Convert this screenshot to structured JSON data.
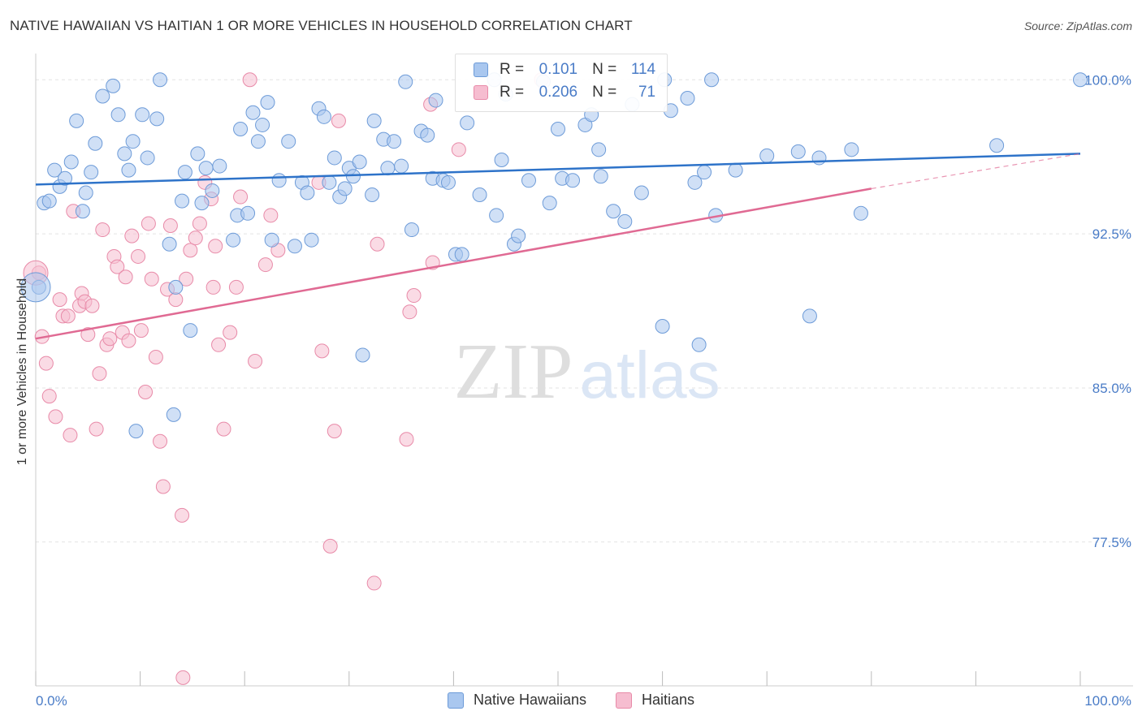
{
  "title": "NATIVE HAWAIIAN VS HAITIAN 1 OR MORE VEHICLES IN HOUSEHOLD CORRELATION CHART",
  "source": "Source: ZipAtlas.com",
  "watermark": {
    "zip": "ZIP",
    "atlas": "atlas"
  },
  "colors": {
    "blue_fill": "#a9c7ef",
    "blue_stroke": "#6d9bd8",
    "blue_line": "#2e73c9",
    "pink_fill": "#f6bdd0",
    "pink_stroke": "#e88aa8",
    "pink_line": "#e06a93",
    "tick_label": "#4a7cc7",
    "grid": "#e3e3e3"
  },
  "legend_top": {
    "rows": [
      {
        "r_label": "R =",
        "r_value": "0.101",
        "n_label": "N =",
        "n_value": "114"
      },
      {
        "r_label": "R =",
        "r_value": "0.206",
        "n_label": "N =",
        "n_value": "71"
      }
    ]
  },
  "legend_bottom": [
    "Native Hawaiians",
    "Haitians"
  ],
  "chart_data": {
    "type": "scatter",
    "title": "NATIVE HAWAIIAN VS HAITIAN 1 OR MORE VEHICLES IN HOUSEHOLD CORRELATION CHART",
    "xlabel": "",
    "ylabel": "1 or more Vehicles in Household",
    "xlim": [
      0,
      100
    ],
    "ylim": [
      70.5,
      100.8
    ],
    "x_tick_labels": [
      "0.0%",
      "100.0%"
    ],
    "y_ticks": [
      77.5,
      85.0,
      92.5,
      100.0
    ],
    "y_tick_labels": [
      "77.5%",
      "85.0%",
      "92.5%",
      "100.0%"
    ],
    "grid": true,
    "legend_position": "bottom",
    "series": [
      {
        "name": "Native Hawaiians",
        "r": 0.101,
        "n": 114,
        "trend": {
          "x0": 0,
          "y0": 94.9,
          "x1": 100,
          "y1": 96.4
        },
        "points": [
          [
            0.8,
            94.0
          ],
          [
            1.3,
            94.1
          ],
          [
            1.8,
            95.6
          ],
          [
            2.3,
            94.8
          ],
          [
            2.8,
            95.2
          ],
          [
            3.4,
            96.0
          ],
          [
            3.9,
            98.0
          ],
          [
            4.5,
            93.6
          ],
          [
            4.8,
            94.5
          ],
          [
            5.3,
            95.5
          ],
          [
            5.7,
            96.9
          ],
          [
            6.4,
            99.2
          ],
          [
            7.4,
            99.7
          ],
          [
            7.9,
            98.3
          ],
          [
            8.5,
            96.4
          ],
          [
            8.9,
            95.6
          ],
          [
            9.3,
            97.0
          ],
          [
            10.2,
            98.3
          ],
          [
            10.7,
            96.2
          ],
          [
            11.6,
            98.1
          ],
          [
            11.9,
            100.0
          ],
          [
            12.8,
            92.0
          ],
          [
            13.4,
            89.9
          ],
          [
            14.0,
            94.1
          ],
          [
            14.3,
            95.5
          ],
          [
            14.8,
            87.8
          ],
          [
            15.5,
            96.4
          ],
          [
            15.9,
            94.0
          ],
          [
            16.3,
            95.7
          ],
          [
            16.9,
            94.6
          ],
          [
            17.6,
            95.8
          ],
          [
            18.9,
            92.2
          ],
          [
            19.3,
            93.4
          ],
          [
            19.6,
            97.6
          ],
          [
            20.3,
            93.5
          ],
          [
            20.8,
            98.4
          ],
          [
            21.3,
            97.0
          ],
          [
            21.7,
            97.8
          ],
          [
            22.2,
            98.9
          ],
          [
            22.6,
            92.2
          ],
          [
            23.3,
            95.1
          ],
          [
            24.2,
            97.0
          ],
          [
            24.8,
            91.9
          ],
          [
            25.5,
            95.0
          ],
          [
            26.0,
            94.5
          ],
          [
            26.4,
            92.2
          ],
          [
            27.1,
            98.6
          ],
          [
            27.6,
            98.2
          ],
          [
            28.1,
            95.0
          ],
          [
            28.6,
            96.2
          ],
          [
            29.1,
            94.3
          ],
          [
            29.6,
            94.7
          ],
          [
            30.0,
            95.7
          ],
          [
            30.4,
            95.3
          ],
          [
            31.0,
            96.0
          ],
          [
            31.3,
            86.6
          ],
          [
            32.2,
            94.4
          ],
          [
            32.4,
            98.0
          ],
          [
            33.3,
            97.1
          ],
          [
            33.7,
            95.7
          ],
          [
            34.3,
            97.0
          ],
          [
            35.0,
            95.8
          ],
          [
            35.4,
            99.9
          ],
          [
            36.0,
            92.7
          ],
          [
            36.9,
            97.5
          ],
          [
            37.5,
            97.3
          ],
          [
            38.0,
            95.2
          ],
          [
            38.3,
            99.0
          ],
          [
            39.0,
            95.1
          ],
          [
            39.5,
            95.0
          ],
          [
            40.2,
            91.5
          ],
          [
            40.8,
            91.5
          ],
          [
            41.3,
            97.9
          ],
          [
            42.5,
            94.4
          ],
          [
            43.9,
            100.0
          ],
          [
            44.1,
            93.4
          ],
          [
            44.6,
            96.1
          ],
          [
            45.0,
            99.3
          ],
          [
            45.8,
            92.0
          ],
          [
            46.2,
            92.4
          ],
          [
            47.2,
            95.1
          ],
          [
            48.6,
            99.9
          ],
          [
            49.2,
            94.0
          ],
          [
            50.0,
            97.6
          ],
          [
            50.4,
            95.2
          ],
          [
            51.4,
            95.1
          ],
          [
            52.6,
            97.8
          ],
          [
            53.2,
            98.3
          ],
          [
            53.9,
            96.6
          ],
          [
            54.1,
            95.3
          ],
          [
            55.3,
            93.6
          ],
          [
            56.4,
            93.1
          ],
          [
            57.1,
            98.8
          ],
          [
            58.0,
            94.5
          ],
          [
            60.0,
            88.0
          ],
          [
            60.2,
            100.0
          ],
          [
            60.8,
            98.5
          ],
          [
            62.4,
            99.1
          ],
          [
            63.1,
            95.0
          ],
          [
            63.5,
            87.1
          ],
          [
            64.0,
            95.5
          ],
          [
            64.7,
            100.0
          ],
          [
            65.1,
            93.4
          ],
          [
            67.0,
            95.6
          ],
          [
            70.0,
            96.3
          ],
          [
            73.0,
            96.5
          ],
          [
            74.1,
            88.5
          ],
          [
            75.0,
            96.2
          ],
          [
            78.1,
            96.6
          ],
          [
            79.0,
            93.5
          ],
          [
            92.0,
            96.8
          ],
          [
            100.0,
            100.0
          ],
          [
            0.3,
            89.9
          ],
          [
            13.2,
            83.7
          ],
          [
            9.6,
            82.9
          ]
        ]
      },
      {
        "name": "Haitians",
        "r": 0.206,
        "n": 71,
        "trend": {
          "x0": 0,
          "y0": 87.4,
          "x1": 80,
          "y1": 94.7,
          "dashed_to_x": 100,
          "dashed_to_y": 96.4
        },
        "points": [
          [
            0.3,
            90.6
          ],
          [
            0.6,
            87.5
          ],
          [
            1.0,
            86.2
          ],
          [
            1.3,
            84.6
          ],
          [
            1.9,
            83.6
          ],
          [
            2.3,
            89.3
          ],
          [
            2.6,
            88.5
          ],
          [
            3.1,
            88.5
          ],
          [
            3.3,
            82.7
          ],
          [
            3.6,
            93.6
          ],
          [
            4.2,
            89.0
          ],
          [
            4.4,
            89.6
          ],
          [
            4.7,
            89.2
          ],
          [
            5.0,
            87.6
          ],
          [
            5.4,
            89.0
          ],
          [
            5.8,
            83.0
          ],
          [
            6.1,
            85.7
          ],
          [
            6.4,
            92.7
          ],
          [
            6.8,
            87.1
          ],
          [
            7.1,
            87.4
          ],
          [
            7.5,
            91.4
          ],
          [
            7.8,
            90.9
          ],
          [
            8.3,
            87.7
          ],
          [
            8.6,
            90.4
          ],
          [
            8.9,
            87.3
          ],
          [
            9.2,
            92.4
          ],
          [
            9.8,
            91.4
          ],
          [
            10.1,
            87.8
          ],
          [
            10.5,
            84.8
          ],
          [
            10.8,
            93.0
          ],
          [
            11.1,
            90.3
          ],
          [
            11.5,
            86.5
          ],
          [
            11.9,
            82.4
          ],
          [
            12.2,
            80.2
          ],
          [
            12.6,
            89.8
          ],
          [
            12.9,
            92.9
          ],
          [
            13.4,
            89.3
          ],
          [
            14.0,
            78.8
          ],
          [
            14.4,
            90.3
          ],
          [
            14.8,
            91.7
          ],
          [
            15.3,
            92.3
          ],
          [
            15.7,
            93.0
          ],
          [
            16.2,
            95.0
          ],
          [
            16.8,
            94.2
          ],
          [
            17.2,
            91.9
          ],
          [
            17.5,
            87.1
          ],
          [
            18.0,
            83.0
          ],
          [
            18.6,
            87.7
          ],
          [
            19.2,
            89.9
          ],
          [
            19.6,
            94.3
          ],
          [
            20.5,
            100.0
          ],
          [
            21.0,
            86.3
          ],
          [
            22.0,
            91.0
          ],
          [
            22.5,
            93.4
          ],
          [
            23.2,
            91.7
          ],
          [
            27.1,
            95.0
          ],
          [
            27.4,
            86.8
          ],
          [
            28.2,
            77.3
          ],
          [
            28.6,
            82.9
          ],
          [
            29.0,
            98.0
          ],
          [
            32.4,
            75.5
          ],
          [
            32.7,
            92.0
          ],
          [
            35.5,
            82.5
          ],
          [
            35.8,
            88.7
          ],
          [
            36.2,
            89.5
          ],
          [
            37.8,
            98.8
          ],
          [
            38.0,
            91.1
          ],
          [
            48.4,
            100.0
          ],
          [
            40.5,
            96.6
          ],
          [
            14.1,
            70.9
          ],
          [
            17.0,
            89.9
          ]
        ]
      }
    ]
  }
}
